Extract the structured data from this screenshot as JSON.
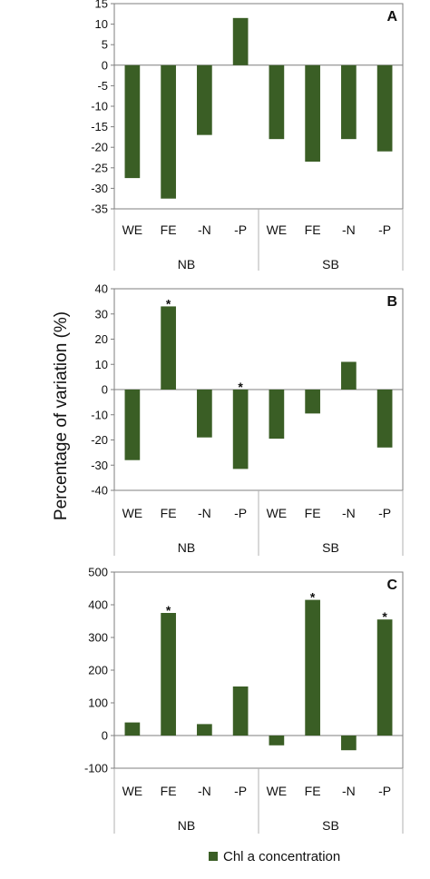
{
  "figure": {
    "ylabel": "Percentage of variation (%)",
    "legend_label": "Chl a concentration",
    "bar_color": "#3a5e25",
    "axis_color": "#7f7f7f"
  },
  "chart_data": [
    {
      "type": "bar",
      "panel": "A",
      "groups": [
        {
          "name": "NB",
          "categories": [
            "WE",
            "FE",
            "-N",
            "-P"
          ]
        },
        {
          "name": "SB",
          "categories": [
            "WE",
            "FE",
            "-N",
            "-P"
          ]
        }
      ],
      "categories": [
        "WE",
        "FE",
        "-N",
        "-P",
        "WE",
        "FE",
        "-N",
        "-P"
      ],
      "series": [
        {
          "name": "Chl a concentration",
          "values": [
            -27.5,
            -32.5,
            -17,
            11.5,
            -18,
            -23.5,
            -18,
            -21
          ]
        }
      ],
      "significant": [
        false,
        false,
        false,
        false,
        false,
        false,
        false,
        false
      ],
      "ylim": [
        -35,
        15
      ],
      "yticks": [
        15,
        10,
        5,
        0,
        -5,
        -10,
        -15,
        -20,
        -25,
        -30,
        -35
      ],
      "ylabel": "Percentage of variation (%)",
      "legend": "bottom"
    },
    {
      "type": "bar",
      "panel": "B",
      "groups": [
        {
          "name": "NB",
          "categories": [
            "WE",
            "FE",
            "-N",
            "-P"
          ]
        },
        {
          "name": "SB",
          "categories": [
            "WE",
            "FE",
            "-N",
            "-P"
          ]
        }
      ],
      "categories": [
        "WE",
        "FE",
        "-N",
        "-P",
        "WE",
        "FE",
        "-N",
        "-P"
      ],
      "series": [
        {
          "name": "Chl a concentration",
          "values": [
            -28,
            33,
            -19,
            -31.5,
            -19.5,
            -9.5,
            11,
            -23
          ]
        }
      ],
      "significant": [
        false,
        true,
        false,
        true,
        false,
        false,
        false,
        false
      ],
      "ylim": [
        -40,
        40
      ],
      "yticks": [
        40,
        30,
        20,
        10,
        0,
        -10,
        -20,
        -30,
        -40
      ],
      "ylabel": "Percentage of variation (%)",
      "legend": "bottom"
    },
    {
      "type": "bar",
      "panel": "C",
      "groups": [
        {
          "name": "NB",
          "categories": [
            "WE",
            "FE",
            "-N",
            "-P"
          ]
        },
        {
          "name": "SB",
          "categories": [
            "WE",
            "FE",
            "-N",
            "-P"
          ]
        }
      ],
      "categories": [
        "WE",
        "FE",
        "-N",
        "-P",
        "WE",
        "FE",
        "-N",
        "-P"
      ],
      "series": [
        {
          "name": "Chl a concentration",
          "values": [
            40,
            375,
            35,
            150,
            -30,
            415,
            -45,
            355
          ]
        }
      ],
      "significant": [
        false,
        true,
        false,
        false,
        false,
        true,
        false,
        true
      ],
      "ylim": [
        -100,
        500
      ],
      "yticks": [
        500,
        400,
        300,
        200,
        100,
        0,
        -100
      ],
      "ylabel": "Percentage of variation (%)",
      "legend": "bottom"
    }
  ]
}
